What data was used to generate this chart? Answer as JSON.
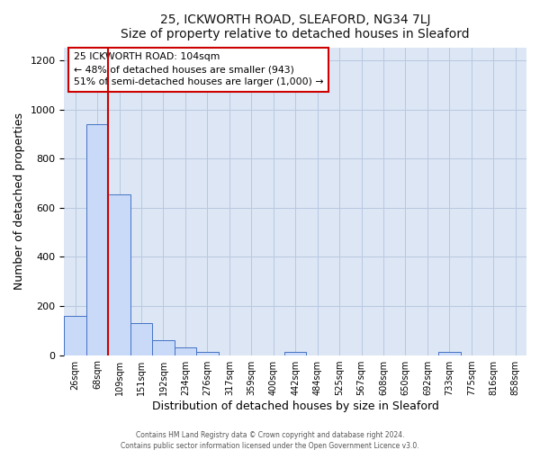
{
  "title": "25, ICKWORTH ROAD, SLEAFORD, NG34 7LJ",
  "subtitle": "Size of property relative to detached houses in Sleaford",
  "xlabel": "Distribution of detached houses by size in Sleaford",
  "ylabel": "Number of detached properties",
  "bin_labels": [
    "26sqm",
    "68sqm",
    "109sqm",
    "151sqm",
    "192sqm",
    "234sqm",
    "276sqm",
    "317sqm",
    "359sqm",
    "400sqm",
    "442sqm",
    "484sqm",
    "525sqm",
    "567sqm",
    "608sqm",
    "650sqm",
    "692sqm",
    "733sqm",
    "775sqm",
    "816sqm",
    "858sqm"
  ],
  "bar_heights": [
    160,
    940,
    655,
    130,
    62,
    30,
    12,
    0,
    0,
    0,
    12,
    0,
    0,
    0,
    0,
    0,
    0,
    12,
    0,
    0,
    0
  ],
  "bar_color": "#c9daf8",
  "bar_edge_color": "#4472c4",
  "vline_color": "#cc0000",
  "vline_x_index": 2,
  "ylim": [
    0,
    1250
  ],
  "yticks": [
    0,
    200,
    400,
    600,
    800,
    1000,
    1200
  ],
  "annotation_title": "25 ICKWORTH ROAD: 104sqm",
  "annotation_line1": "← 48% of detached houses are smaller (943)",
  "annotation_line2": "51% of semi-detached houses are larger (1,000) →",
  "footer_line1": "Contains HM Land Registry data © Crown copyright and database right 2024.",
  "footer_line2": "Contains public sector information licensed under the Open Government Licence v3.0.",
  "background_color": "#ffffff",
  "plot_bg_color": "#dce6f5",
  "grid_color": "#b8c8e0"
}
